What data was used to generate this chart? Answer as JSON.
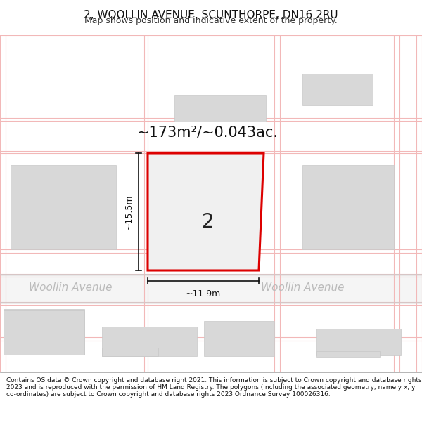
{
  "title_line1": "2, WOOLLIN AVENUE, SCUNTHORPE, DN16 2RU",
  "title_line2": "Map shows position and indicative extent of the property.",
  "area_label": "~173m²/~0.043ac.",
  "dim_height": "~15.5m",
  "dim_width": "~11.9m",
  "property_number": "2",
  "street_label_left": "Woollin Avenue",
  "street_label_right": "Woollin Avenue",
  "copyright_text": "Contains OS data © Crown copyright and database right 2021. This information is subject to Crown copyright and database rights 2023 and is reproduced with the permission of HM Land Registry. The polygons (including the associated geometry, namely x, y co-ordinates) are subject to Crown copyright and database rights 2023 Ordnance Survey 100026316.",
  "bg_color": "#ffffff",
  "map_bg": "#ffffff",
  "grid_color": "#f2b8b8",
  "building_color": "#d8d8d8",
  "building_edge": "#c8c8c8",
  "property_fill": "#eeeeee",
  "property_edge": "#dd0000",
  "title_color": "#111111",
  "subtitle_color": "#333333",
  "street_color": "#bbbbbb",
  "footer_bg": "#ffffff",
  "dim_color": "#111111",
  "street_band_bg": "#f8f8f8"
}
